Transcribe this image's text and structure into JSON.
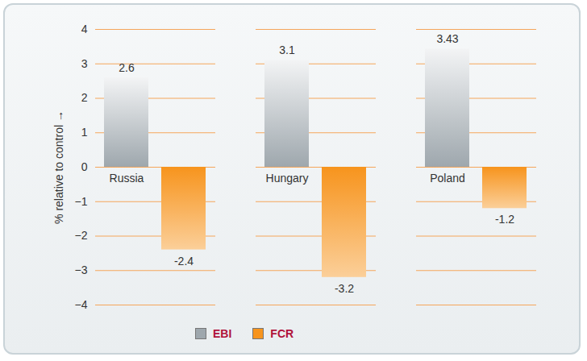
{
  "chart_data": {
    "type": "bar",
    "ylabel": "% relative to control",
    "categories": [
      "Russia",
      "Hungary",
      "Poland"
    ],
    "series": [
      {
        "name": "EBI",
        "color": "#9ea7ad",
        "values": [
          2.6,
          3.1,
          3.43
        ]
      },
      {
        "name": "FCR",
        "color": "#f7941d",
        "values": [
          -2.4,
          -3.2,
          -1.2
        ]
      }
    ],
    "ylim": [
      -4,
      4
    ],
    "yticks": [
      -4,
      -3,
      -2,
      -1,
      0,
      1,
      2,
      3,
      4
    ],
    "grid": true,
    "data_labels": true,
    "legend": "bottom"
  }
}
